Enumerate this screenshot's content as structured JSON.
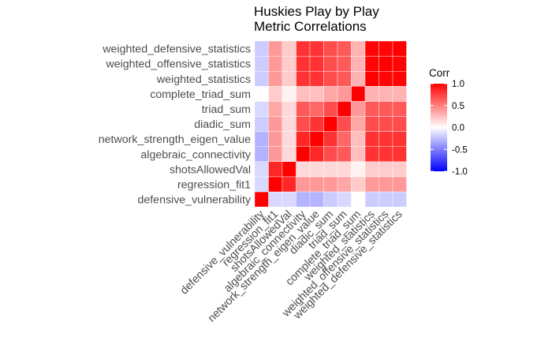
{
  "chart_data": {
    "type": "heatmap",
    "title": "Huskies Play by Play\nMetric Correlations",
    "variables": [
      "defensive_vulnerability",
      "regression_fit1",
      "shotsAllowedVal",
      "algebraic_connectivity",
      "network_strength_eigen_value",
      "diadic_sum",
      "triad_sum",
      "complete_triad_sum",
      "weighted_statistics",
      "weighted_offensive_statistics",
      "weighted_defensive_statistics"
    ],
    "matrix": [
      [
        1.0,
        -0.15,
        -0.15,
        -0.3,
        -0.3,
        -0.2,
        -0.15,
        0.0,
        -0.2,
        -0.2,
        -0.2
      ],
      [
        -0.15,
        1.0,
        0.85,
        0.4,
        0.4,
        0.4,
        0.35,
        0.2,
        0.4,
        0.4,
        0.4
      ],
      [
        -0.15,
        0.85,
        1.0,
        0.15,
        0.15,
        0.15,
        0.15,
        0.05,
        0.2,
        0.2,
        0.2
      ],
      [
        -0.3,
        0.4,
        0.15,
        1.0,
        0.85,
        0.7,
        0.65,
        0.25,
        0.8,
        0.8,
        0.8
      ],
      [
        -0.3,
        0.4,
        0.15,
        0.85,
        1.0,
        0.8,
        0.6,
        0.25,
        0.8,
        0.8,
        0.8
      ],
      [
        -0.2,
        0.4,
        0.15,
        0.7,
        0.8,
        1.0,
        0.7,
        0.35,
        0.7,
        0.7,
        0.7
      ],
      [
        -0.15,
        0.35,
        0.15,
        0.65,
        0.6,
        0.7,
        1.0,
        0.4,
        0.65,
        0.65,
        0.65
      ],
      [
        0.0,
        0.2,
        0.05,
        0.25,
        0.25,
        0.35,
        0.4,
        1.0,
        0.3,
        0.3,
        0.3
      ],
      [
        -0.2,
        0.4,
        0.2,
        0.8,
        0.8,
        0.7,
        0.65,
        0.3,
        1.0,
        0.98,
        0.98
      ],
      [
        -0.2,
        0.4,
        0.2,
        0.8,
        0.8,
        0.7,
        0.65,
        0.3,
        0.98,
        1.0,
        0.98
      ],
      [
        -0.2,
        0.4,
        0.2,
        0.8,
        0.8,
        0.7,
        0.65,
        0.3,
        0.98,
        0.98,
        1.0
      ]
    ],
    "legend": {
      "title": "Corr",
      "ticks": [
        "1.0",
        "0.5",
        "0.0",
        "-0.5",
        "-1.0"
      ],
      "tick_values": [
        1.0,
        0.5,
        0.0,
        -0.5,
        -1.0
      ],
      "range": [
        -1,
        1
      ],
      "low_color": "#0000ff",
      "mid_color": "#ffffff",
      "high_color": "#ff0000",
      "placement": "right"
    },
    "grid": false
  }
}
